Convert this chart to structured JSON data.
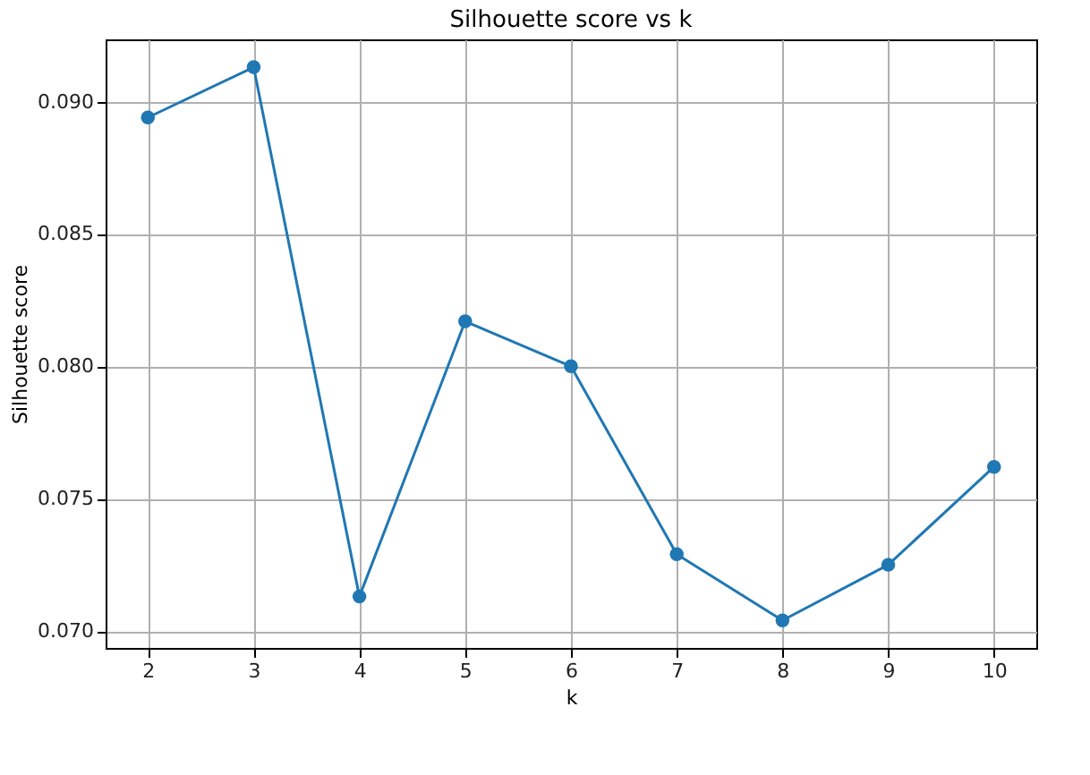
{
  "chart_data": {
    "type": "line",
    "title": "Silhouette score vs k",
    "xlabel": "k",
    "ylabel": "Silhouette score",
    "x": [
      2,
      3,
      4,
      5,
      6,
      7,
      8,
      9,
      10
    ],
    "series": [
      {
        "color": "#1f77b4",
        "values": [
          0.0894,
          0.0913,
          0.0713,
          0.0817,
          0.08,
          0.0729,
          0.0704,
          0.0725,
          0.0762
        ]
      }
    ],
    "xlim": [
      1.6,
      10.4
    ],
    "xticks": [
      2,
      3,
      4,
      5,
      6,
      7,
      8,
      9,
      10
    ],
    "ylim": [
      0.06936,
      0.09235
    ],
    "yticks": [
      {
        "value": 0.07,
        "label": "0.070"
      },
      {
        "value": 0.075,
        "label": "0.075"
      },
      {
        "value": 0.08,
        "label": "0.080"
      },
      {
        "value": 0.085,
        "label": "0.085"
      },
      {
        "value": 0.09,
        "label": "0.090"
      }
    ],
    "grid": true,
    "marker": "circle",
    "line_style": "solid"
  }
}
